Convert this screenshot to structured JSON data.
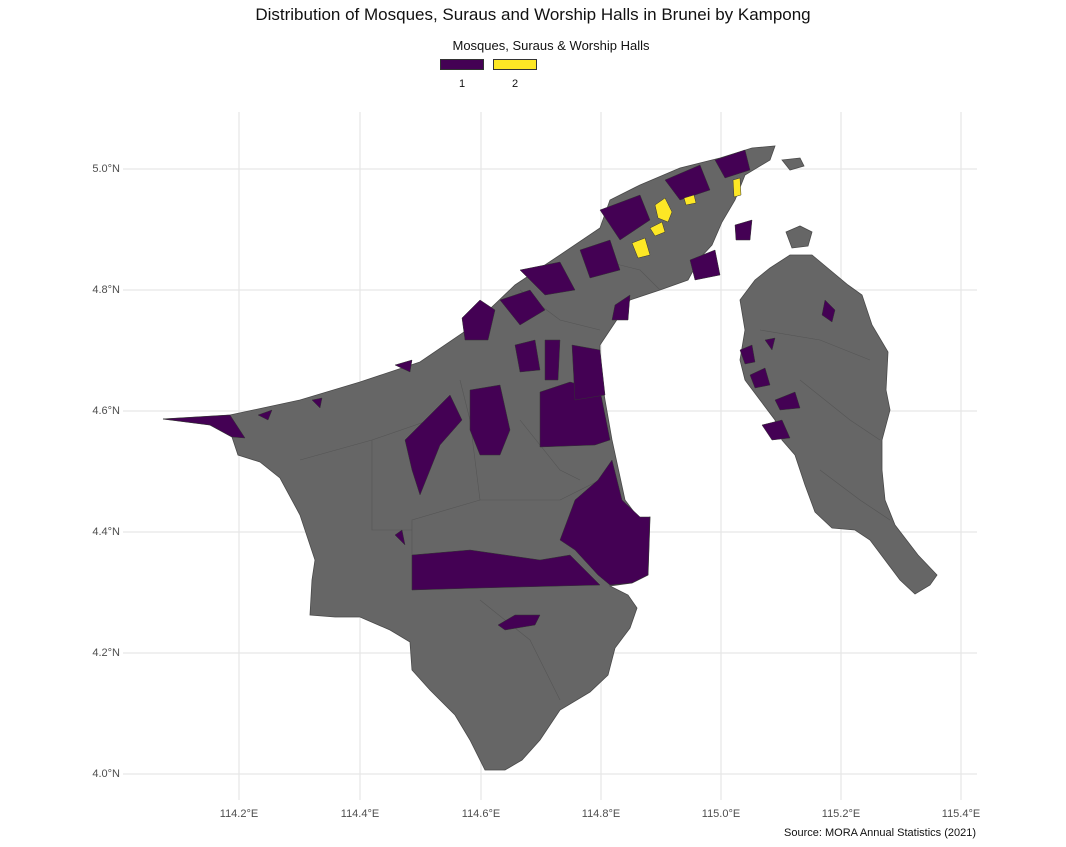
{
  "title": "Distribution of Mosques, Suraus and Worship Halls in Brunei by Kampong",
  "legend": {
    "title": "Mosques, Suraus & Worship Halls",
    "items": [
      {
        "label": "1",
        "color": "#440154"
      },
      {
        "label": "2",
        "color": "#FDE725"
      }
    ]
  },
  "axes": {
    "y_ticks": [
      "5.0°N",
      "4.8°N",
      "4.6°N",
      "4.4°N",
      "4.2°N",
      "4.0°N"
    ],
    "x_ticks": [
      "114.2°E",
      "114.4°E",
      "114.6°E",
      "114.8°E",
      "115.0°E",
      "115.2°E",
      "115.4°E"
    ]
  },
  "caption": "Source: MORA Annual Statistics (2021)",
  "colors": {
    "no_data": "#666666",
    "border": "#4a4a4a",
    "grid": "#e6e6e6",
    "purple": "#440154",
    "yellow": "#FDE725"
  }
}
